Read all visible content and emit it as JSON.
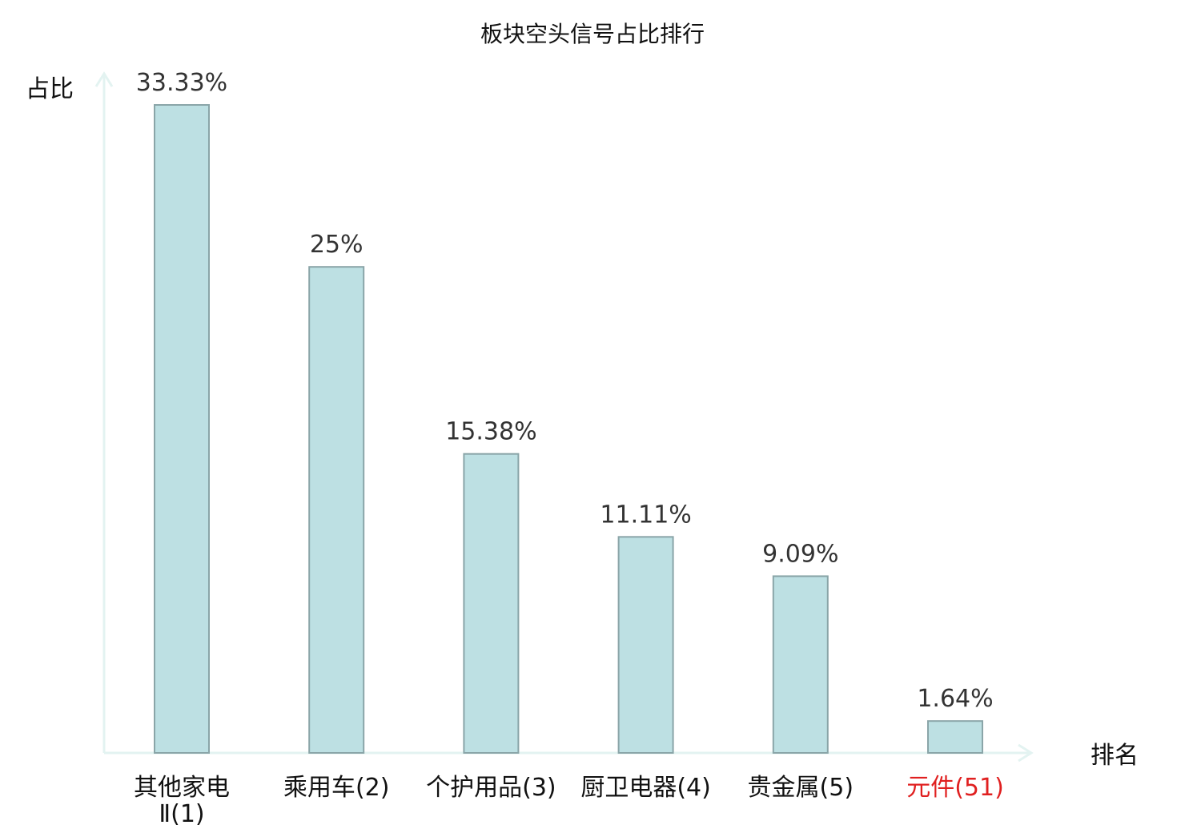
{
  "chart_data": {
    "type": "bar",
    "title": "板块空头信号占比排行",
    "ylabel": "占比",
    "xlabel": "排名",
    "ylim": [
      0,
      33.33
    ],
    "grid": false,
    "legend": "none",
    "categories": [
      {
        "name": "其他家电",
        "rank": "Ⅱ(1)",
        "color": "#111111"
      },
      {
        "name": "乘用车",
        "rank": "(2)",
        "color": "#111111"
      },
      {
        "name": "个护用品",
        "rank": "(3)",
        "color": "#111111"
      },
      {
        "name": "厨卫电器",
        "rank": "(4)",
        "color": "#111111"
      },
      {
        "name": "贵金属",
        "rank": "(5)",
        "color": "#111111"
      },
      {
        "name": "元件",
        "rank": "(51)",
        "color": "#e02020"
      }
    ],
    "values": [
      33.33,
      25,
      15.38,
      11.11,
      9.09,
      1.64
    ],
    "value_labels": [
      "33.33%",
      "25%",
      "15.38%",
      "11.11%",
      "9.09%",
      "1.64%"
    ],
    "colors": {
      "bar_fill": "#bde0e3",
      "bar_stroke": "#8aa5a8",
      "axis": "#e3f3f1",
      "highlight": "#e02020"
    }
  }
}
